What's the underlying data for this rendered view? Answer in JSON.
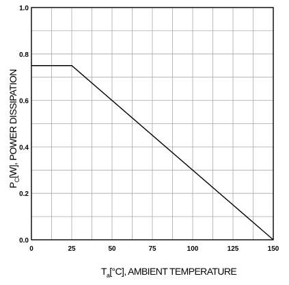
{
  "chart_data": {
    "type": "line",
    "title": "",
    "xlabel": {
      "main": "T",
      "sub": "a",
      "rest": "[°C], AMBIENT TEMPERATURE"
    },
    "ylabel": {
      "main": "P",
      "sub": "C",
      "rest": "[W], POWER DISSIPATION"
    },
    "xlim": [
      0,
      150
    ],
    "ylim": [
      0.0,
      1.0
    ],
    "x_ticks": [
      0,
      25,
      50,
      75,
      100,
      125,
      150
    ],
    "x_tick_labels": [
      "0",
      "25",
      "50",
      "75",
      "100",
      "125",
      "150"
    ],
    "y_ticks": [
      0.0,
      0.2,
      0.4,
      0.6,
      0.8,
      1.0
    ],
    "y_tick_labels": [
      "0.0",
      "0.2",
      "0.4",
      "0.6",
      "0.8",
      "1.0"
    ],
    "x_minor_step": 12.5,
    "y_minor_step": 0.1,
    "grid": true,
    "series": [
      {
        "x": [
          0,
          25,
          150
        ],
        "y": [
          0.75,
          0.75,
          0.0
        ],
        "color": "#000000"
      }
    ]
  }
}
